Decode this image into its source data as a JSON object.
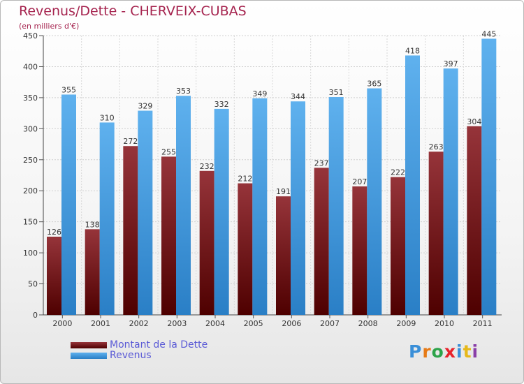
{
  "colors": {
    "dette": "#7a1f24",
    "revenus": "#4da3e6",
    "title": "#a5234e",
    "legend_text": "#5a5ad6"
  },
  "chart_data": {
    "type": "bar",
    "title": "Revenus/Dette - CHERVEIX-CUBAS",
    "subtitle": "(en milliers d'€)",
    "xlabel": "",
    "ylabel": "",
    "ylim": [
      0,
      450
    ],
    "yticks": [
      0,
      50,
      100,
      150,
      200,
      250,
      300,
      350,
      400,
      450
    ],
    "grid": true,
    "legend_position": "bottom-left",
    "categories": [
      "2000",
      "2001",
      "2002",
      "2003",
      "2004",
      "2005",
      "2006",
      "2007",
      "2008",
      "2009",
      "2010",
      "2011"
    ],
    "series": [
      {
        "name": "Montant de la Dette",
        "color": "#7a1f24",
        "values": [
          126,
          138,
          272,
          255,
          232,
          212,
          191,
          237,
          207,
          222,
          263,
          304
        ]
      },
      {
        "name": "Revenus",
        "color": "#4da3e6",
        "values": [
          355,
          310,
          329,
          353,
          332,
          349,
          344,
          351,
          365,
          418,
          397,
          445
        ]
      }
    ]
  },
  "legend": {
    "items": [
      {
        "label": "Montant de la Dette"
      },
      {
        "label": "Revenus"
      }
    ]
  },
  "logo": {
    "text": "Proxiti",
    "letters": [
      {
        "ch": "P",
        "color": "#3a8fd8"
      },
      {
        "ch": "r",
        "color": "#e67a16"
      },
      {
        "ch": "o",
        "color": "#2da34a"
      },
      {
        "ch": "x",
        "color": "#e8222a"
      },
      {
        "ch": "i",
        "color": "#3a8fd8"
      },
      {
        "ch": "t",
        "color": "#e6b81a"
      },
      {
        "ch": "i",
        "color": "#8a3fa8"
      }
    ]
  }
}
